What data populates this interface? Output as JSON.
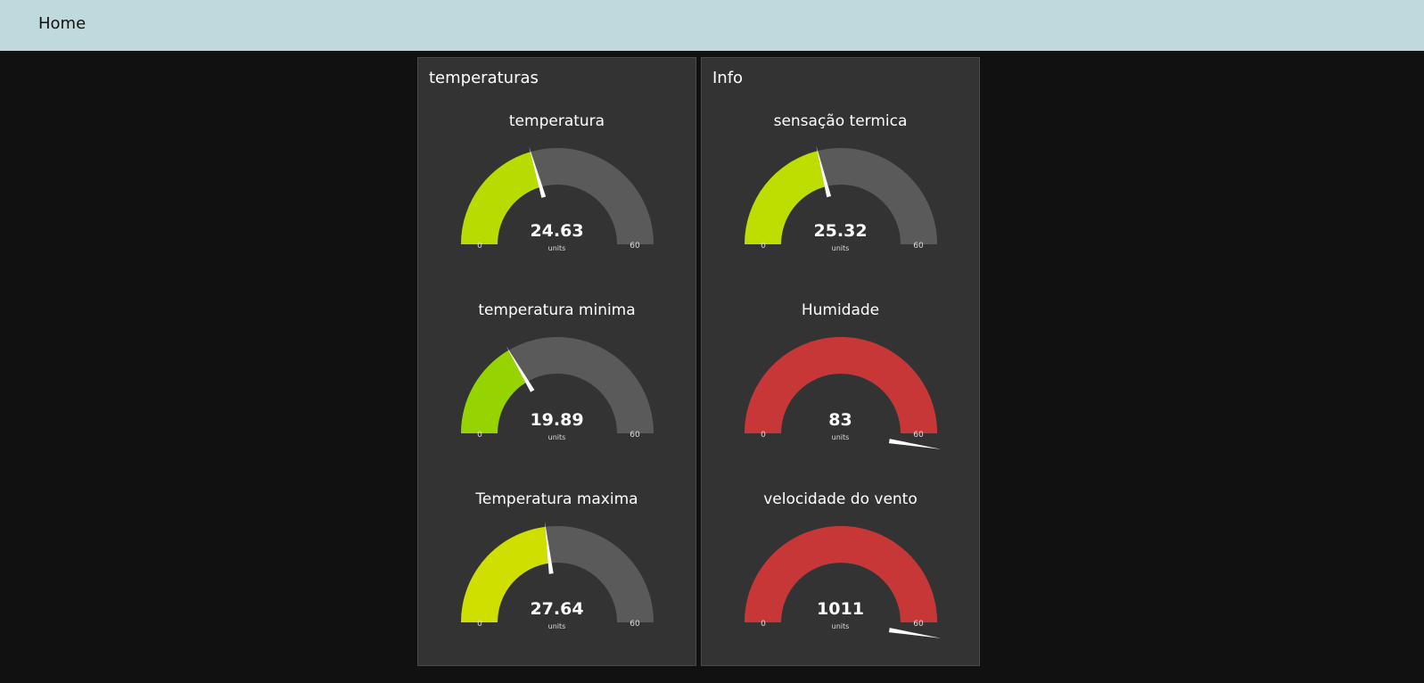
{
  "toolbar": {
    "title": "Home"
  },
  "colors": {
    "toolbar_bg": "#c0d9dc",
    "page_bg": "#111111",
    "group_bg": "#333333",
    "gauge_track": "#5a5a5a",
    "needle": "#ffffff"
  },
  "groups": [
    {
      "title": "temperaturas",
      "gauges": [
        {
          "title": "temperatura",
          "value": 24.63,
          "display": "24.63",
          "units": "units",
          "min": 0,
          "max": 60,
          "min_label": "0",
          "max_label": "60",
          "color": "#b9dc00"
        },
        {
          "title": "temperatura minima",
          "value": 19.89,
          "display": "19.89",
          "units": "units",
          "min": 0,
          "max": 60,
          "min_label": "0",
          "max_label": "60",
          "color": "#96d400"
        },
        {
          "title": "Temperatura maxima",
          "value": 27.64,
          "display": "27.64",
          "units": "units",
          "min": 0,
          "max": 60,
          "min_label": "0",
          "max_label": "60",
          "color": "#cfe000"
        }
      ]
    },
    {
      "title": "Info",
      "gauges": [
        {
          "title": "sensação termica",
          "value": 25.32,
          "display": "25.32",
          "units": "units",
          "min": 0,
          "max": 60,
          "min_label": "0",
          "max_label": "60",
          "color": "#bedd00"
        },
        {
          "title": "Humidade",
          "value": 83,
          "display": "83",
          "units": "units",
          "min": 0,
          "max": 60,
          "min_label": "0",
          "max_label": "60",
          "color": "#c83737"
        },
        {
          "title": "velocidade do vento",
          "value": 1011,
          "display": "1011",
          "units": "units",
          "min": 0,
          "max": 60,
          "min_label": "0",
          "max_label": "60",
          "color": "#c83737"
        }
      ]
    }
  ]
}
